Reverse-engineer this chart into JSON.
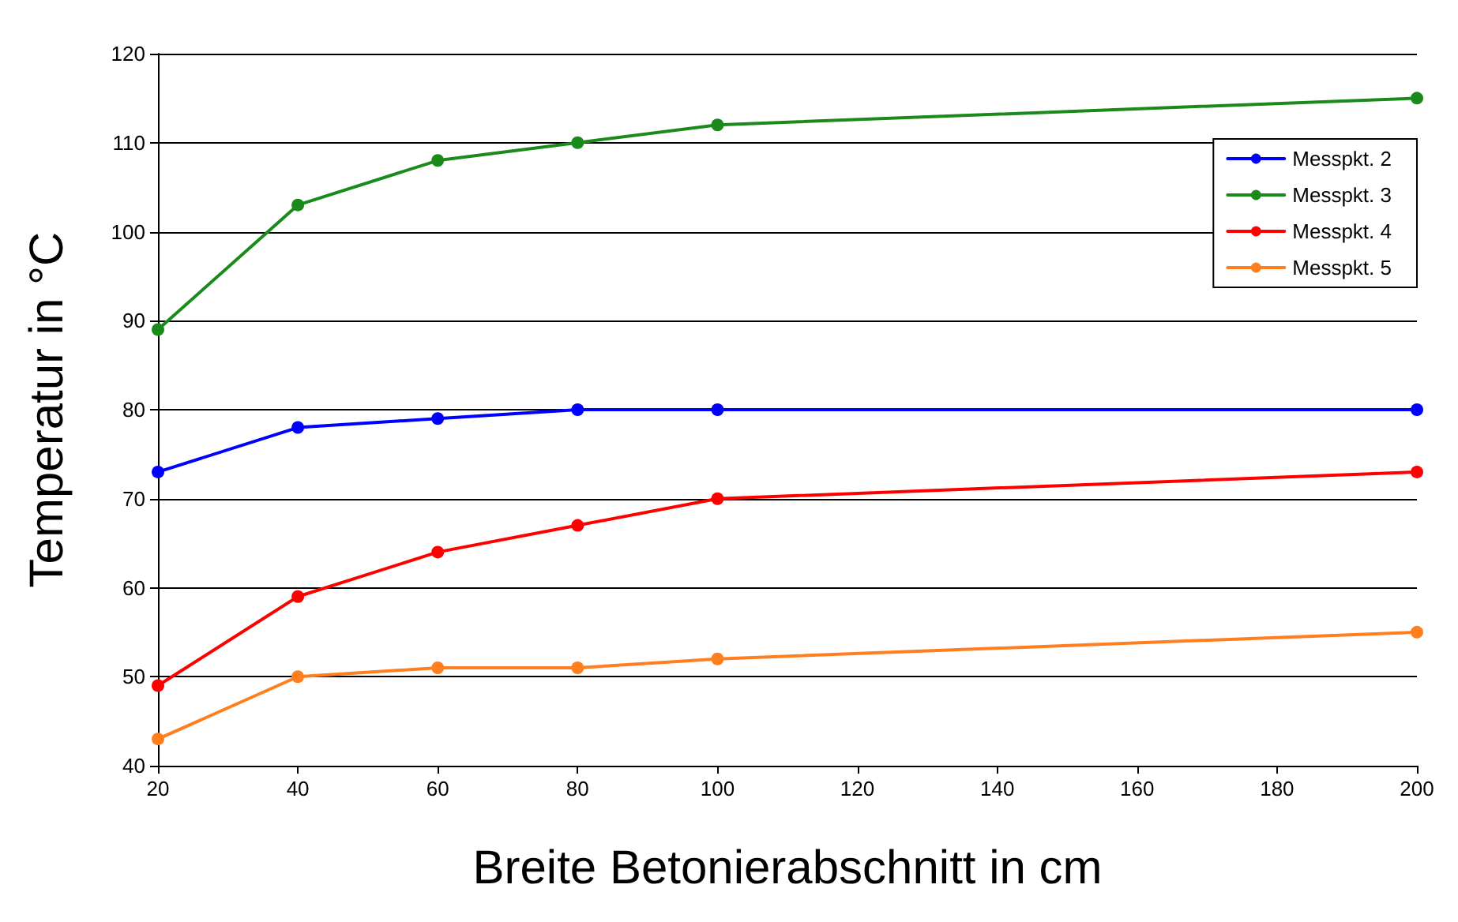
{
  "chart_data": {
    "type": "line",
    "xlabel": "Breite Betonierabschnitt in cm",
    "ylabel": "Temperatur in °C",
    "x": [
      20,
      40,
      60,
      80,
      100,
      200
    ],
    "series": [
      {
        "name": "Messpkt. 2",
        "color": "#0000ff",
        "values": [
          73,
          78,
          79,
          80,
          80,
          80
        ]
      },
      {
        "name": "Messpkt. 3",
        "color": "#1a8a1a",
        "values": [
          89,
          103,
          108,
          110,
          112,
          115
        ]
      },
      {
        "name": "Messpkt. 4",
        "color": "#ff0000",
        "values": [
          49,
          59,
          64,
          67,
          70,
          73
        ]
      },
      {
        "name": "Messpkt. 5",
        "color": "#ff7f1e",
        "values": [
          43,
          50,
          51,
          51,
          52,
          55
        ]
      }
    ],
    "xlim": [
      20,
      200
    ],
    "xticks": [
      20,
      40,
      60,
      80,
      100,
      120,
      140,
      160,
      180,
      200
    ],
    "ylim": [
      40,
      120
    ],
    "yticks": [
      40,
      50,
      60,
      70,
      80,
      90,
      100,
      110,
      120
    ],
    "grid": "y",
    "legend": "top right",
    "marker": "circle",
    "line_style": "solid"
  }
}
